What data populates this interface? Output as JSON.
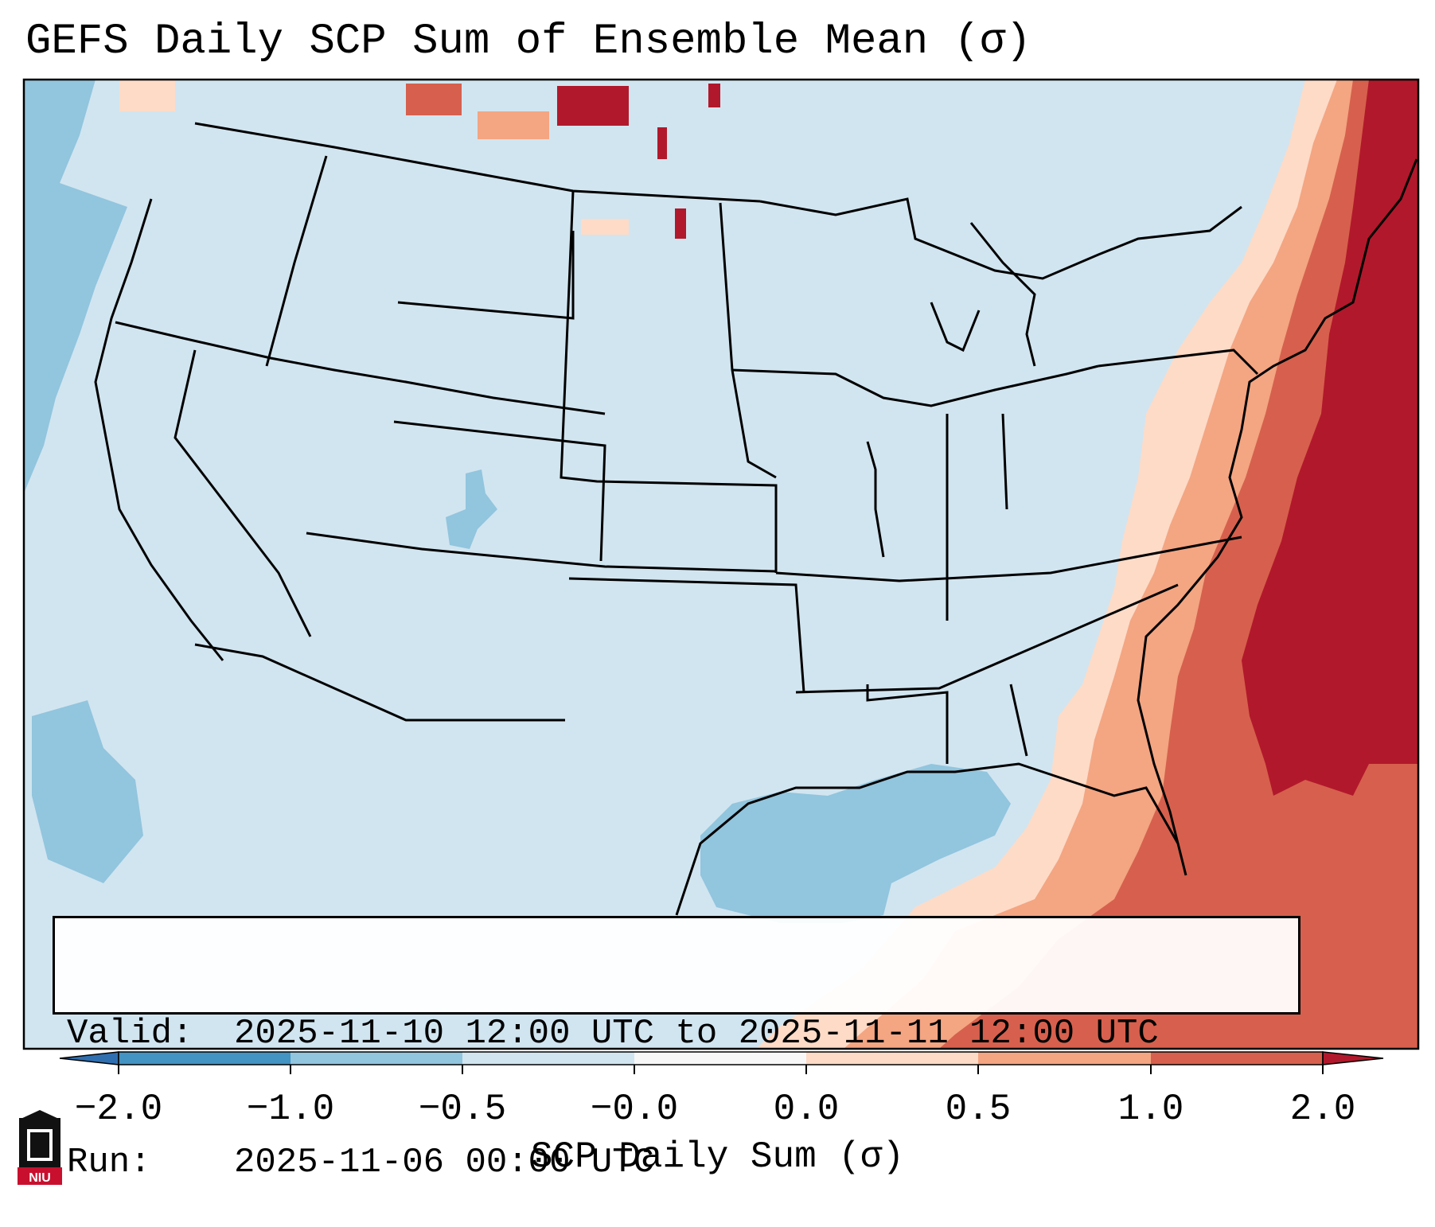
{
  "title": "GEFS Daily SCP Sum of Ensemble Mean (σ)",
  "info": {
    "valid_label": "Valid:",
    "valid_value": "2025-11-10 12:00 UTC to 2025-11-11 12:00 UTC",
    "run_label": "Run:",
    "run_value": "2025-11-06 00:00 UTC"
  },
  "colorbar": {
    "label": "SCP Daily Sum (σ)",
    "ticks": [
      "−2.0",
      "−1.0",
      "−0.5",
      "−0.0",
      "0.0",
      "0.5",
      "1.0",
      "2.0"
    ],
    "bins": [
      {
        "range": "below −2.0",
        "color": "#2f6fb0"
      },
      {
        "range": "−2.0 to −1.0",
        "color": "#4393c3"
      },
      {
        "range": "−1.0 to −0.5",
        "color": "#92c5de"
      },
      {
        "range": "−0.5 to −0.0",
        "color": "#d1e5f0"
      },
      {
        "range": "−0.0 to 0.0",
        "color": "#f7f7f7"
      },
      {
        "range": "0.0 to 0.5",
        "color": "#fddbc7"
      },
      {
        "range": "0.5 to 1.0",
        "color": "#f4a582"
      },
      {
        "range": "1.0 to 2.0",
        "color": "#d6604d"
      },
      {
        "range": "above 2.0",
        "color": "#b2182b"
      }
    ]
  },
  "logo": {
    "text": "NIU"
  }
}
